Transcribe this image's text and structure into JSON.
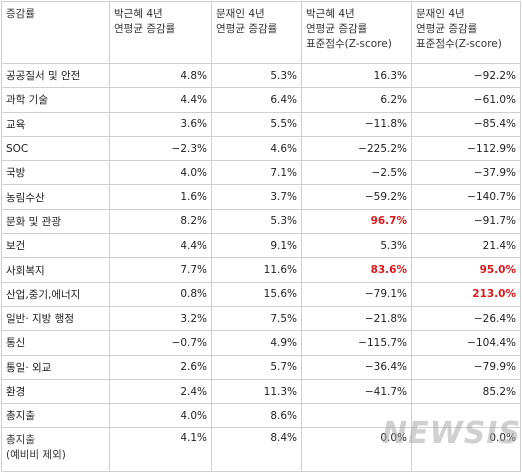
{
  "headers": {
    "category": "증감률",
    "col1": [
      "박근혜 4년",
      "연평균 증감률"
    ],
    "col2": [
      "문재인 4년",
      "연평균 증감률"
    ],
    "col3": [
      "박근혜 4년",
      "연평균 증감률",
      "표준점수(Z-score)"
    ],
    "col4": [
      "문재인 4년",
      "연평균 증감률",
      "표준점수(Z-score)"
    ]
  },
  "rows": [
    {
      "label": "공공질서 및 안전",
      "park": "4.8%",
      "moon": "5.3%",
      "park_z": "16.3%",
      "moon_z": "-92.2%"
    },
    {
      "label": "과학 기술",
      "park": "4.4%",
      "moon": "6.4%",
      "park_z": "6.2%",
      "moon_z": "-61.0%"
    },
    {
      "label": "교육",
      "park": "3.6%",
      "moon": "5.5%",
      "park_z": "-11.8%",
      "moon_z": "-85.4%"
    },
    {
      "label": "SOC",
      "park": "-2.3%",
      "moon": "4.6%",
      "park_z": "-225.2%",
      "moon_z": "-112.9%"
    },
    {
      "label": "국방",
      "park": "4.0%",
      "moon": "7.1%",
      "park_z": "-2.5%",
      "moon_z": "-37.9%"
    },
    {
      "label": "농림수산",
      "park": "1.6%",
      "moon": "3.7%",
      "park_z": "-59.2%",
      "moon_z": "-140.7%"
    },
    {
      "label": "문화 및 관광",
      "park": "8.2%",
      "moon": "5.3%",
      "park_z": "96.7%",
      "moon_z": "-91.7%",
      "park_z_highlight": true
    },
    {
      "label": "보건",
      "park": "4.4%",
      "moon": "9.1%",
      "park_z": "5.3%",
      "moon_z": "21.4%"
    },
    {
      "label": "사회복지",
      "park": "7.7%",
      "moon": "11.6%",
      "park_z": "83.6%",
      "moon_z": "95.0%",
      "park_z_highlight": true,
      "moon_z_highlight": true
    },
    {
      "label": "산업,중기,에너지",
      "park": "0.8%",
      "moon": "15.6%",
      "park_z": "-79.1%",
      "moon_z": "213.0%",
      "moon_z_highlight": true
    },
    {
      "label": "일반· 지방 행정",
      "park": "3.2%",
      "moon": "7.5%",
      "park_z": "-21.8%",
      "moon_z": "-26.4%"
    },
    {
      "label": "통신",
      "park": "-0.7%",
      "moon": "4.9%",
      "park_z": "-115.7%",
      "moon_z": "-104.4%"
    },
    {
      "label": "통일· 외교",
      "park": "2.6%",
      "moon": "5.7%",
      "park_z": "-36.4%",
      "moon_z": "-79.9%"
    },
    {
      "label": "환경",
      "park": "2.4%",
      "moon": "11.3%",
      "park_z": "-41.7%",
      "moon_z": "85.2%"
    },
    {
      "label": "총지출",
      "park": "4.0%",
      "moon": "8.6%",
      "park_z": "",
      "moon_z": ""
    }
  ],
  "last_row": {
    "label": "총지출",
    "label_sub": "(예비비 제외)",
    "park": "4.1%",
    "moon": "8.4%",
    "park_z": "0.0%",
    "moon_z": "0.0%"
  },
  "watermark": "NEWSIS"
}
